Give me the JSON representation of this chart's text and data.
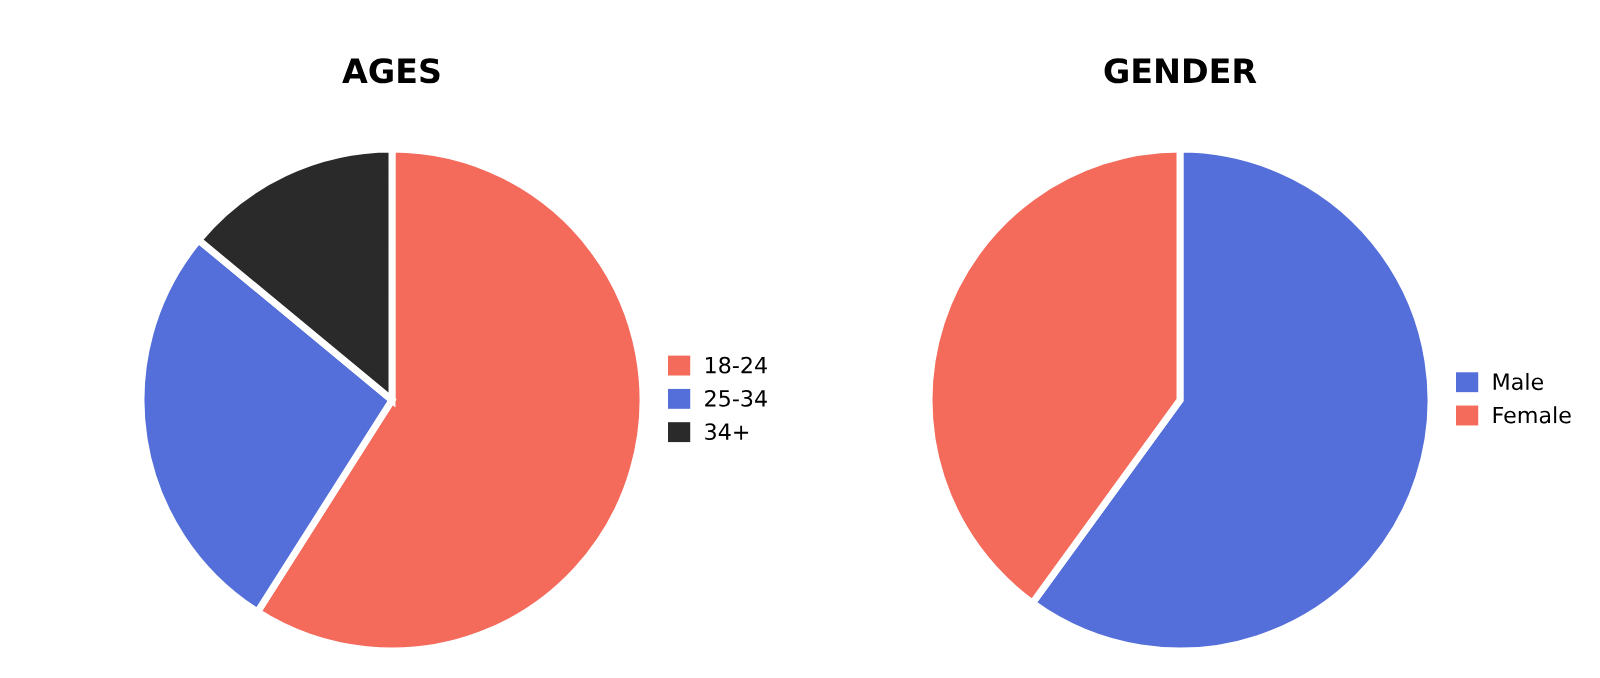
{
  "chart_data": [
    {
      "type": "pie",
      "title": "AGES",
      "categories": [
        "18-24",
        "25-34",
        "34+"
      ],
      "values": [
        59,
        27,
        14
      ],
      "colors": [
        "#f46b5c",
        "#546fd9",
        "#2a2a2a"
      ],
      "legend": "right"
    },
    {
      "type": "pie",
      "title": "GENDER",
      "categories": [
        "Male",
        "Female"
      ],
      "values": [
        60,
        40
      ],
      "colors": [
        "#546fd9",
        "#f46b5c"
      ],
      "legend": "right"
    }
  ]
}
